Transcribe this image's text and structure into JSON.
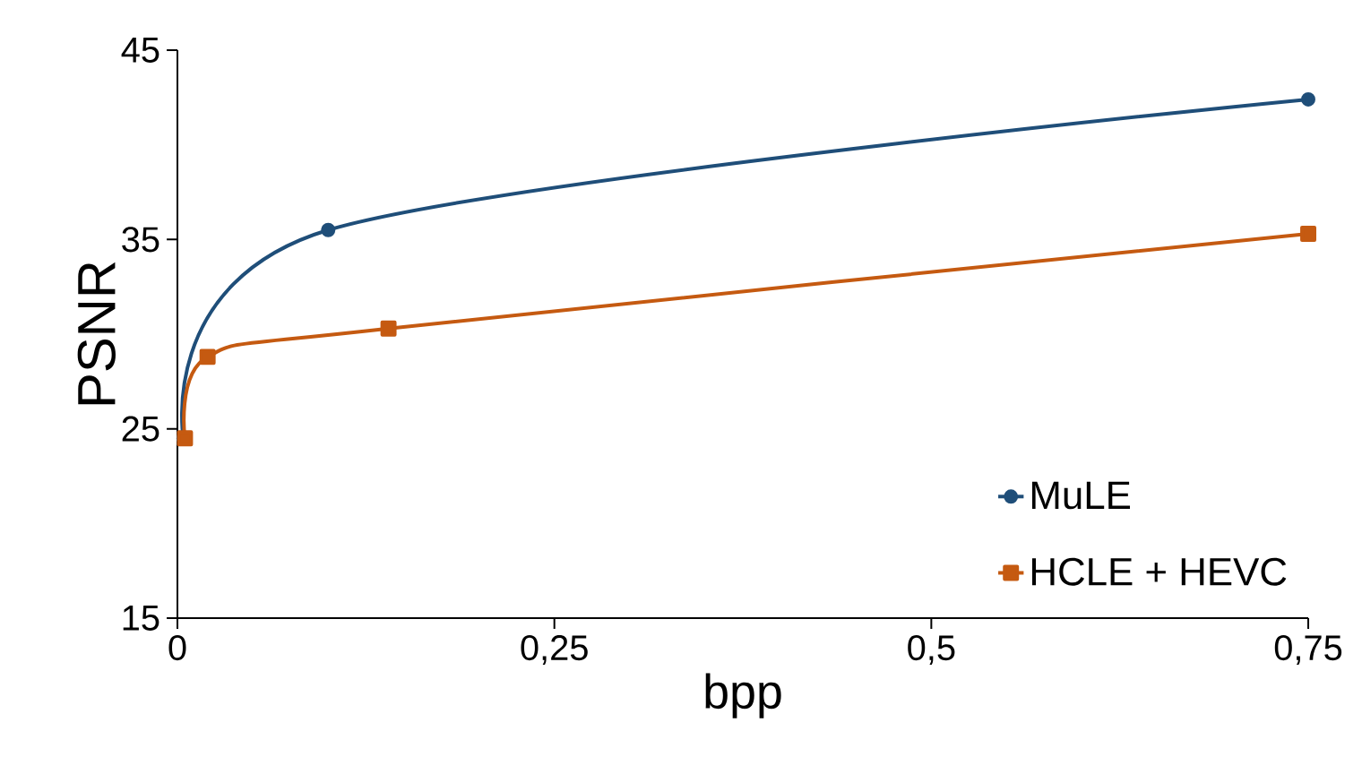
{
  "chart_data": {
    "type": "line",
    "xlabel": "bpp",
    "ylabel": "PSNR",
    "xlim": [
      0,
      0.75
    ],
    "xticks": [
      0,
      {
        "value": 0.25,
        "label": "0,25"
      },
      {
        "value": 0.5,
        "label": "0,5"
      },
      {
        "value": 0.75,
        "label": "0,75"
      }
    ],
    "ylim": [
      15,
      45
    ],
    "yticks": [
      15,
      25,
      35,
      45
    ],
    "grid": false,
    "legend": "bottom right",
    "line_style": "solid",
    "series": [
      {
        "name": "MuLE",
        "color": "#1f4e79",
        "marker": "circle",
        "x": [
          0.004,
          0.1,
          0.75
        ],
        "values": [
          24.5,
          35.5,
          42.4
        ]
      },
      {
        "name": "HCLE + HEVC",
        "color": "#c55a11",
        "marker": "square",
        "x": [
          0.005,
          0.02,
          0.14,
          0.75
        ],
        "values": [
          24.5,
          28.8,
          30.3,
          35.3
        ]
      }
    ]
  }
}
